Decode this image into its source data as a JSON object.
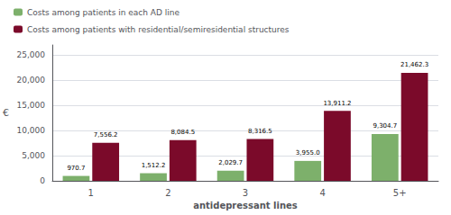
{
  "chart_data": {
    "type": "bar",
    "categories": [
      "1",
      "2",
      "3",
      "4",
      "5+"
    ],
    "series": [
      {
        "name": "Costs among patients in each AD line",
        "color": "#7db06b",
        "values": [
          970.7,
          1512.2,
          2029.7,
          3955.0,
          9304.7
        ],
        "value_labels": [
          "970.7",
          "1,512.2",
          "2,029.7",
          "3,955.0",
          "9,304.7"
        ]
      },
      {
        "name": "Costs among patients with residential/semiresidential structures",
        "color": "#7b0a2a",
        "values": [
          7556.2,
          8084.5,
          8316.5,
          13911.2,
          21462.3
        ],
        "value_labels": [
          "7,556.2",
          "8,084.5",
          "8,316.5",
          "13,911.2",
          "21,462.3"
        ]
      }
    ],
    "xlabel": "antidepressant lines",
    "ylabel": "€",
    "ylim": [
      0,
      27000
    ],
    "yticks": [
      0,
      {
        "value": 5000,
        "label": "5,000"
      },
      {
        "value": 10000,
        "label": "10,000"
      },
      {
        "value": 15000,
        "label": "15,000"
      },
      {
        "value": 20000,
        "label": "20,000"
      },
      {
        "value": 25000,
        "label": "25,000"
      }
    ],
    "grid": true,
    "legend": "top left",
    "data_labels": true
  }
}
